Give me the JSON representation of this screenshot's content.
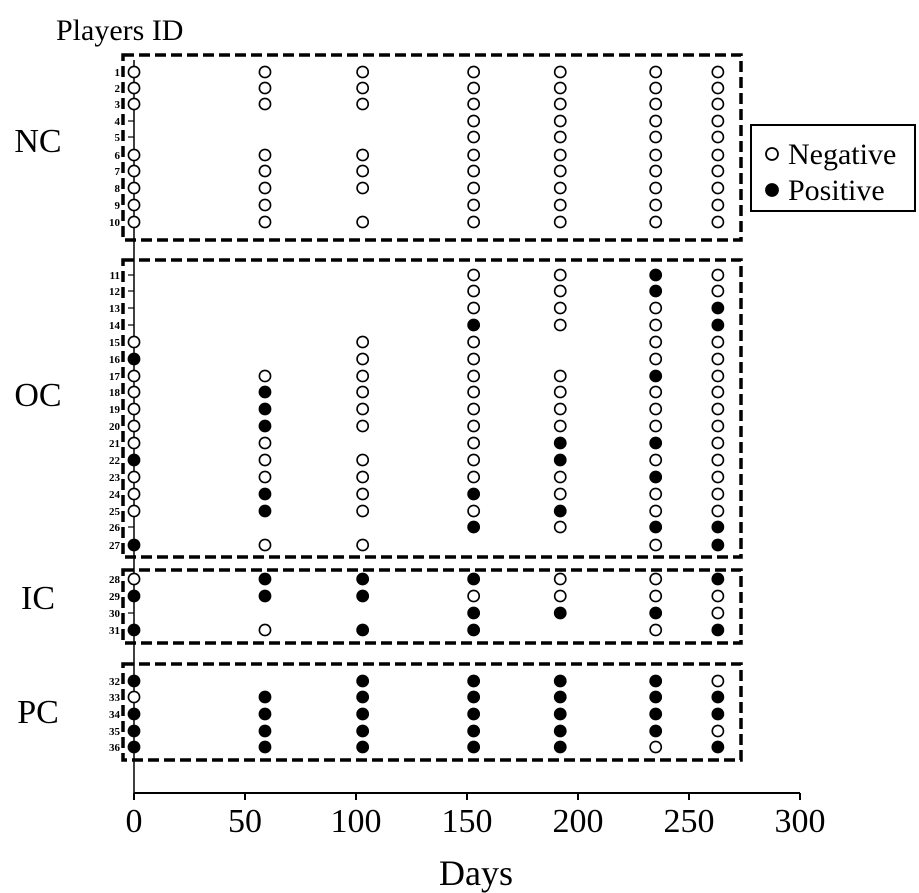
{
  "chart_data": {
    "type": "scatter",
    "title": "",
    "xlabel": "Days",
    "ylabel": "Players ID",
    "xlim": [
      0,
      300
    ],
    "xticks": [
      "0",
      "50",
      "100",
      "150",
      "200",
      "250",
      "300"
    ],
    "sampling_days": [
      0,
      59,
      103,
      153,
      192,
      235,
      263
    ],
    "legend": {
      "placement": "right",
      "negative_label": "Negative",
      "positive_label": "Positive"
    },
    "groups": [
      {
        "label": "NC",
        "players": [
          "1",
          "2",
          "3",
          "4",
          "5",
          "6",
          "7",
          "8",
          "9",
          "10"
        ]
      },
      {
        "label": "OC",
        "players": [
          "11",
          "12",
          "13",
          "14",
          "15",
          "16",
          "17",
          "18",
          "19",
          "20",
          "21",
          "22",
          "23",
          "24",
          "25",
          "26",
          "27"
        ]
      },
      {
        "label": "IC",
        "players": [
          "28",
          "29",
          "30",
          "31"
        ]
      },
      {
        "label": "PC",
        "players": [
          "32",
          "33",
          "34",
          "35",
          "36"
        ]
      }
    ],
    "results_key": "rows are players 1-36; columns are sampling days in order; N = negative, P = positive, - = not sampled",
    "results": [
      "NNNNNNN",
      "NNNNNNN",
      "NNNNNNN",
      "---NNNN",
      "---NNNN",
      "NNNNNNN",
      "NNNNNNN",
      "NNNNNNN",
      "NN-NNNN",
      "NNNNNNN",
      "---NNPN",
      "---NNPN",
      "---NNNP",
      "---PNNP",
      "N-NN-NN",
      "P-NN-NN",
      "NNNNNPN",
      "NPNNNNN",
      "NPNNNNN",
      "NPNNNNN",
      "NN-NPPN",
      "PNNNPNN",
      "NNNNNPN",
      "NPNPNNN",
      "NPNNPNN",
      "---PNPP",
      "PNN--NP",
      "NPPPNNP",
      "PPPNNNN",
      "---PPPN",
      "PNPP-NP",
      "P-PPPPN",
      "NPPPPPP",
      "PPPPPPP",
      "PPPPPPN",
      "PPPPPNP"
    ]
  }
}
